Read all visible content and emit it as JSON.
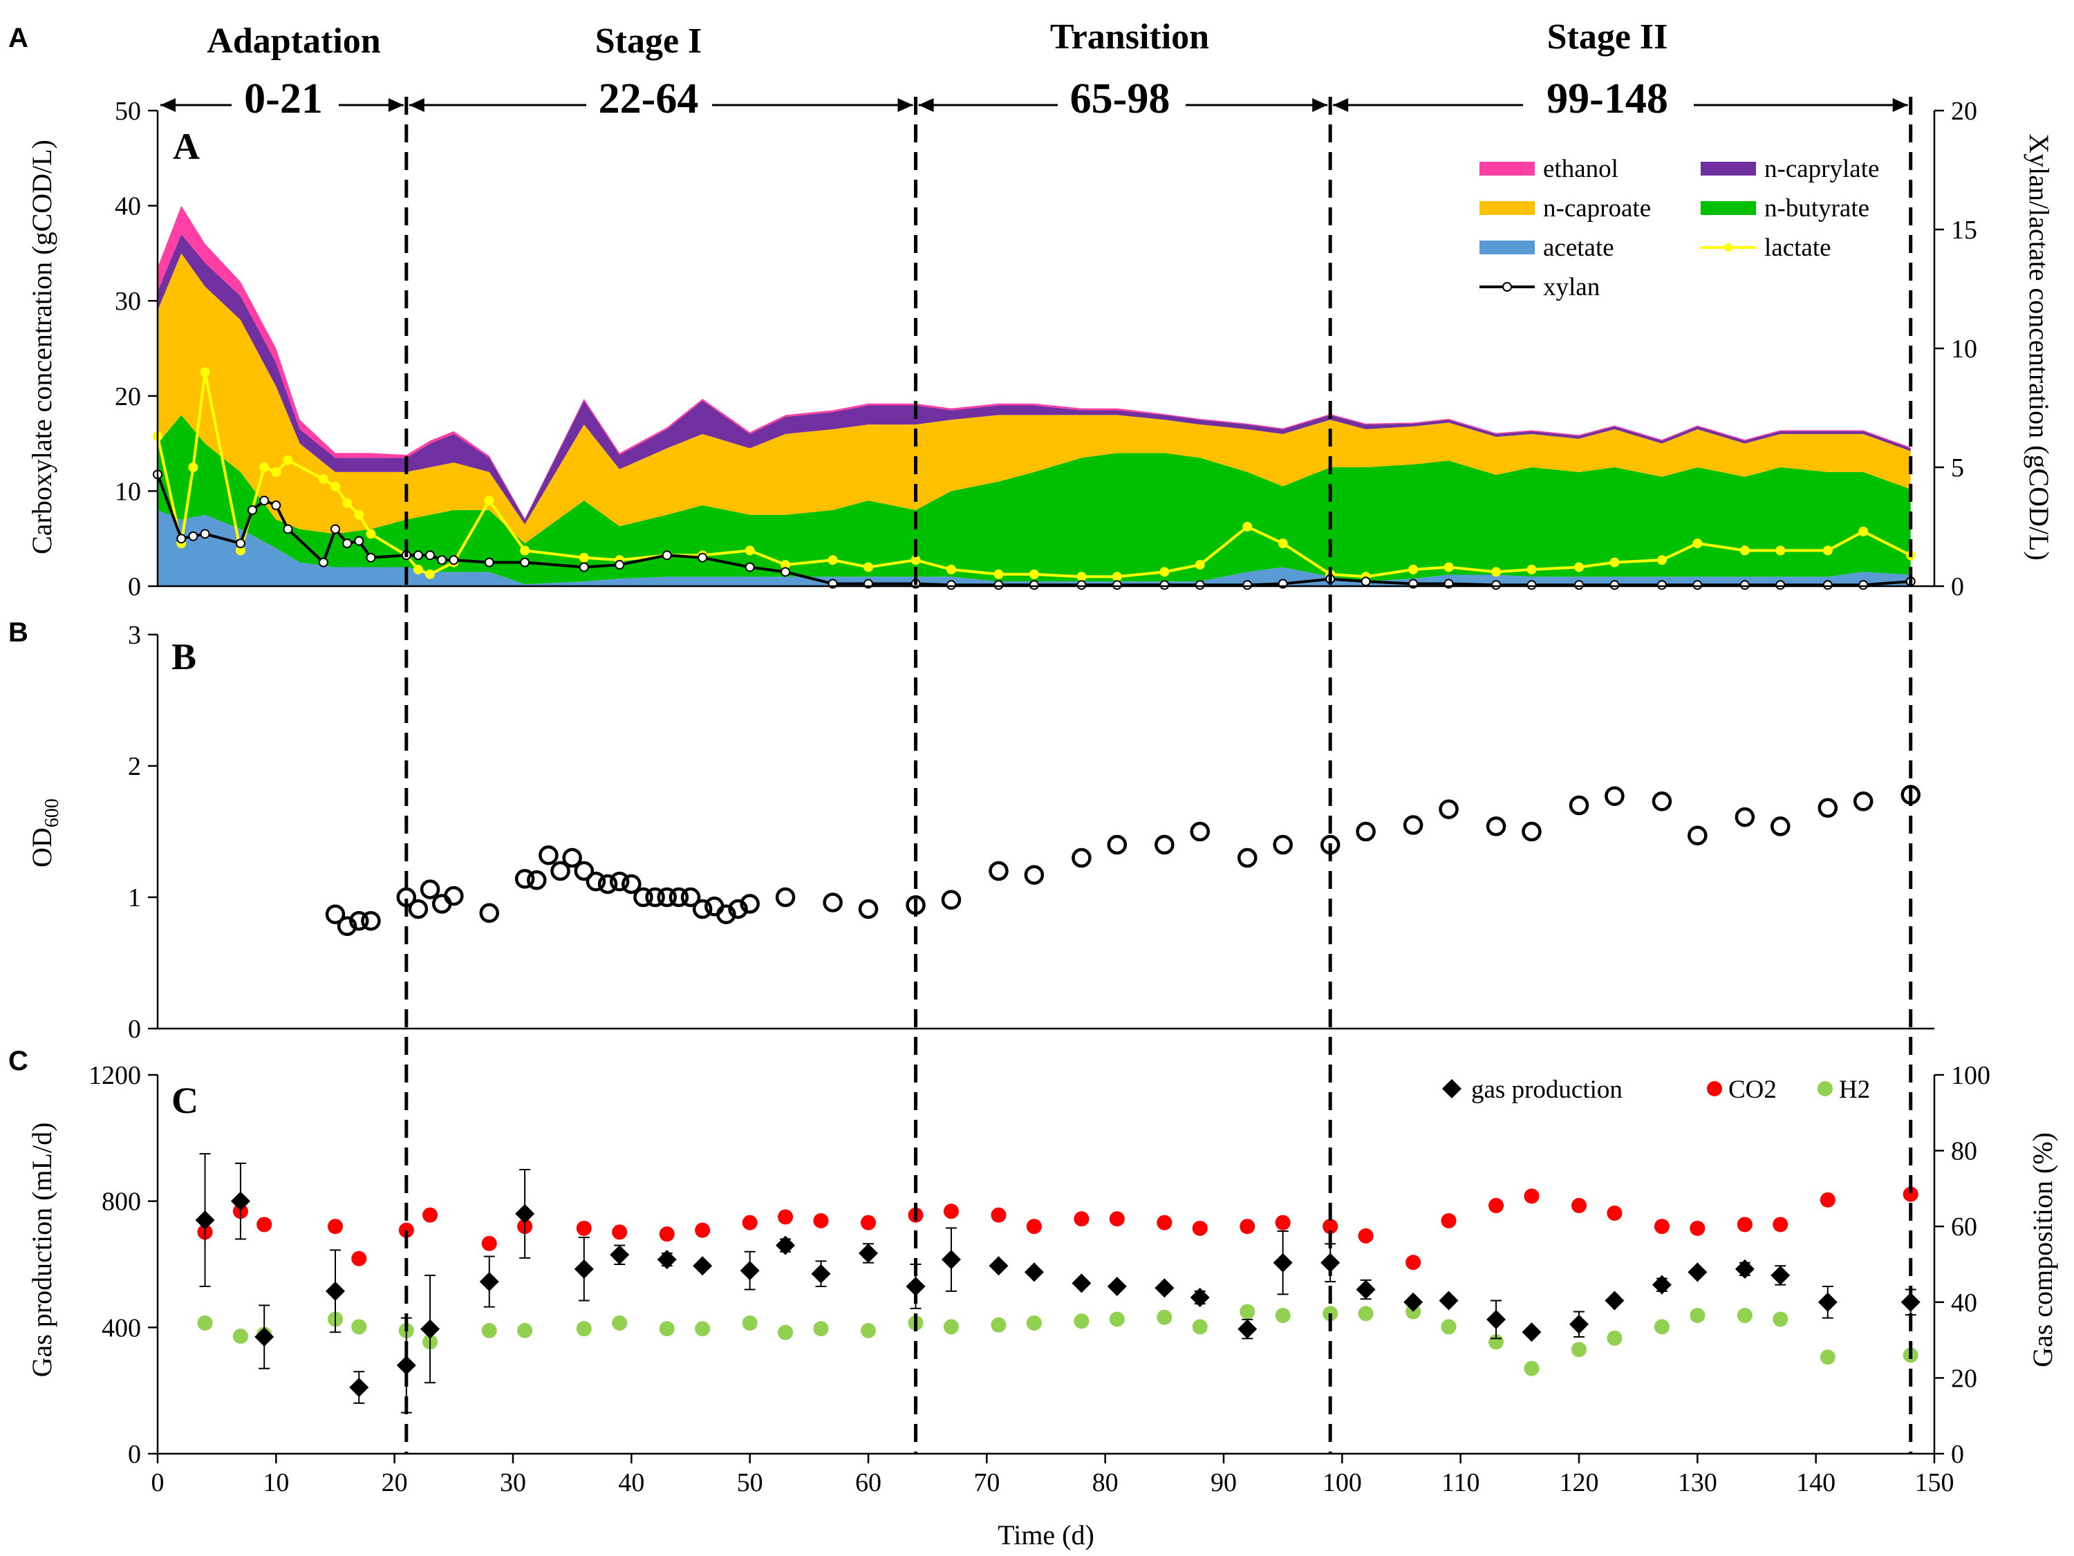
{
  "figure": {
    "outer_labels": [
      "A",
      "B",
      "C"
    ],
    "inner_labels": [
      "A",
      "B",
      "C"
    ],
    "stages": [
      {
        "name": "Adaptation",
        "range": "0-21"
      },
      {
        "name": "Stage I",
        "range": "22-64"
      },
      {
        "name": "Transition",
        "range": "65-98"
      },
      {
        "name": "Stage II",
        "range": "99-148"
      }
    ],
    "stage_boundaries": [
      0,
      21,
      64,
      99,
      148
    ],
    "colors": {
      "ethanol": "#ff3fa4",
      "n_caprylate": "#7030a0",
      "n_caproate": "#ffc000",
      "n_butyrate": "#00c000",
      "acetate": "#5b9bd5",
      "lactate": "#ffff00",
      "xylan": "#000000",
      "co2": "#ff0000",
      "h2": "#92d050"
    }
  },
  "chart_data": [
    {
      "type": "area",
      "panel": "A",
      "ylabel": "Carboxylate concentration (gCOD/L)",
      "y2label": "Xylan/lactate concentration (gCOD/L)",
      "ylim": [
        0,
        50
      ],
      "yticks": [
        0,
        10,
        20,
        30,
        40,
        50
      ],
      "y2lim": [
        0,
        20
      ],
      "y2ticks": [
        0,
        5,
        10,
        15,
        20
      ],
      "xlim": [
        0,
        150
      ],
      "legend": [
        "ethanol",
        "n-caprylate",
        "n-caproate",
        "n-butyrate",
        "acetate",
        "lactate",
        "xylan"
      ],
      "x": [
        0,
        2,
        4,
        7,
        10,
        12,
        15,
        18,
        21,
        23,
        25,
        28,
        31,
        36,
        39,
        43,
        46,
        50,
        53,
        57,
        60,
        64,
        67,
        71,
        74,
        78,
        81,
        85,
        88,
        92,
        95,
        99,
        102,
        106,
        109,
        113,
        116,
        120,
        123,
        127,
        130,
        134,
        137,
        141,
        144,
        148
      ],
      "stacked_series": [
        {
          "name": "acetate",
          "values": [
            8,
            7,
            7.5,
            6,
            4,
            2.5,
            2,
            2,
            2,
            1.5,
            1.5,
            1.5,
            0.2,
            0.5,
            0.8,
            1,
            1,
            1,
            1,
            1,
            1,
            1,
            1,
            0.5,
            0.5,
            0.5,
            0.5,
            0.5,
            0.5,
            1.5,
            2,
            1,
            0.5,
            0.8,
            1.2,
            1.2,
            1,
            1,
            1,
            1,
            1,
            1,
            1,
            1,
            1.5,
            1.2
          ]
        },
        {
          "name": "n-butyrate",
          "values": [
            7,
            11,
            7.5,
            6,
            3,
            3.5,
            3.5,
            4,
            5,
            6,
            6.5,
            6.5,
            4.3,
            8.5,
            5.5,
            6.5,
            7.5,
            6.5,
            6.5,
            7,
            8,
            7,
            9,
            10.5,
            11.5,
            13,
            13.5,
            13.5,
            13,
            10.5,
            8.5,
            11.5,
            12,
            12,
            12,
            10.5,
            11.5,
            11,
            11.5,
            10.5,
            11.5,
            10.5,
            11.5,
            11,
            10.5,
            9
          ]
        },
        {
          "name": "n-caproate",
          "values": [
            14,
            17,
            16.5,
            16,
            14,
            9,
            6.5,
            6,
            5,
            5,
            5,
            4,
            2,
            8,
            6,
            7,
            7.5,
            7,
            8.5,
            8.5,
            8,
            9,
            7.5,
            7,
            6,
            4.5,
            4,
            3.5,
            3.5,
            4.5,
            5.5,
            5,
            4,
            4,
            4,
            4,
            3.5,
            3.5,
            4,
            3.5,
            4,
            3.5,
            3.5,
            4,
            4,
            4
          ]
        },
        {
          "name": "n-caprylate",
          "values": [
            2,
            2,
            2.5,
            2.5,
            2.5,
            1.5,
            1.5,
            1.5,
            1.5,
            2.5,
            3,
            1.5,
            0.5,
            2.5,
            1.5,
            2,
            3.5,
            1.5,
            1.8,
            1.8,
            2,
            2,
            1,
            1,
            1,
            0.5,
            0.5,
            0.5,
            0.5,
            0.5,
            0.5,
            0.5,
            0.5,
            0.3,
            0.3,
            0.3,
            0.3,
            0.3,
            0.3,
            0.3,
            0.3,
            0.3,
            0.3,
            0.3,
            0.3,
            0.3
          ]
        },
        {
          "name": "ethanol",
          "values": [
            2.5,
            3,
            2,
            1.5,
            1.5,
            1,
            0.5,
            0.5,
            0.3,
            0.3,
            0.3,
            0.2,
            0.1,
            0.2,
            0.2,
            0.2,
            0.2,
            0.2,
            0.2,
            0.2,
            0.2,
            0.2,
            0.2,
            0.2,
            0.2,
            0.2,
            0.2,
            0.1,
            0.1,
            0.1,
            0.1,
            0.1,
            0.1,
            0.1,
            0.1,
            0.1,
            0.1,
            0.1,
            0.1,
            0.1,
            0.1,
            0.1,
            0.1,
            0.1,
            0.1,
            0.1
          ]
        }
      ],
      "lactate": {
        "x": [
          0,
          2,
          3,
          4,
          7,
          9,
          10,
          11,
          14,
          15,
          16,
          17,
          18,
          21,
          22,
          23,
          25,
          28,
          31,
          36,
          39,
          43,
          46,
          50,
          53,
          57,
          60,
          64,
          67,
          71,
          74,
          78,
          81,
          85,
          88,
          92,
          95,
          99,
          102,
          106,
          109,
          113,
          116,
          120,
          123,
          127,
          130,
          134,
          137,
          141,
          144,
          148
        ],
        "values": [
          6.3,
          1.8,
          5,
          9,
          1.5,
          5,
          4.8,
          5.3,
          4.5,
          4.2,
          3.5,
          3,
          2.2,
          1.3,
          0.7,
          0.5,
          1,
          3.6,
          1.5,
          1.2,
          1.1,
          1.3,
          1.3,
          1.5,
          0.9,
          1.1,
          0.8,
          1.1,
          0.7,
          0.5,
          0.5,
          0.4,
          0.4,
          0.6,
          0.9,
          2.5,
          1.8,
          0.5,
          0.4,
          0.7,
          0.8,
          0.6,
          0.7,
          0.8,
          1,
          1.1,
          1.8,
          1.5,
          1.5,
          1.5,
          2.3,
          1.3
        ]
      },
      "xylan": {
        "x": [
          0,
          2,
          3,
          4,
          7,
          8,
          9,
          10,
          11,
          14,
          15,
          16,
          17,
          18,
          21,
          22,
          23,
          24,
          25,
          28,
          31,
          36,
          39,
          43,
          46,
          50,
          53,
          57,
          60,
          64,
          67,
          71,
          74,
          78,
          81,
          85,
          88,
          92,
          95,
          99,
          102,
          106,
          109,
          113,
          116,
          120,
          123,
          127,
          130,
          134,
          137,
          141,
          144,
          148
        ],
        "values": [
          4.7,
          2,
          2.1,
          2.2,
          1.8,
          3.2,
          3.6,
          3.4,
          2.4,
          1,
          2.4,
          1.8,
          1.9,
          1.2,
          1.3,
          1.3,
          1.3,
          1.1,
          1.1,
          1,
          1,
          0.8,
          0.9,
          1.3,
          1.2,
          0.8,
          0.6,
          0.1,
          0.1,
          0.1,
          0.05,
          0.05,
          0.05,
          0.05,
          0.05,
          0.05,
          0.05,
          0.05,
          0.1,
          0.3,
          0.2,
          0.1,
          0.1,
          0.05,
          0.05,
          0.05,
          0.05,
          0.05,
          0.05,
          0.05,
          0.05,
          0.05,
          0.05,
          0.2
        ]
      }
    },
    {
      "type": "scatter",
      "panel": "B",
      "ylabel": "OD",
      "ylabel_subscript": "600",
      "ylim": [
        0,
        3
      ],
      "yticks": [
        0,
        1,
        2,
        3
      ],
      "xlim": [
        0,
        150
      ],
      "x": [
        15,
        16,
        17,
        18,
        21,
        22,
        23,
        24,
        25,
        28,
        31,
        32,
        33,
        34,
        35,
        36,
        37,
        38,
        39,
        40,
        41,
        42,
        43,
        44,
        45,
        46,
        47,
        48,
        49,
        50,
        53,
        57,
        60,
        64,
        67,
        71,
        74,
        78,
        81,
        85,
        88,
        92,
        95,
        99,
        102,
        106,
        109,
        113,
        116,
        120,
        123,
        127,
        130,
        134,
        137,
        141,
        144,
        148
      ],
      "values": [
        0.87,
        0.78,
        0.82,
        0.82,
        1.0,
        0.91,
        1.06,
        0.95,
        1.01,
        0.88,
        1.14,
        1.13,
        1.32,
        1.2,
        1.3,
        1.2,
        1.12,
        1.1,
        1.12,
        1.1,
        1.0,
        1.0,
        1.0,
        1.0,
        1.0,
        0.91,
        0.93,
        0.87,
        0.91,
        0.95,
        1.0,
        0.96,
        0.91,
        0.94,
        0.98,
        1.2,
        1.17,
        1.3,
        1.4,
        1.4,
        1.5,
        1.3,
        1.4,
        1.4,
        1.5,
        1.55,
        1.67,
        1.54,
        1.5,
        1.7,
        1.77,
        1.73,
        1.47,
        1.61,
        1.54,
        1.68,
        1.73,
        1.78
      ]
    },
    {
      "type": "scatter",
      "panel": "C",
      "ylabel": "Gas production (mL/d)",
      "y2label": "Gas composition (%)",
      "ylim": [
        0,
        1200
      ],
      "yticks": [
        0,
        400,
        800,
        1200
      ],
      "y2lim": [
        0,
        100
      ],
      "y2ticks": [
        0,
        20,
        40,
        60,
        80,
        100
      ],
      "xlim": [
        0,
        150
      ],
      "xticks": [
        0,
        10,
        20,
        30,
        40,
        50,
        60,
        70,
        80,
        90,
        100,
        110,
        120,
        130,
        140,
        150
      ],
      "xlabel": "Time (d)",
      "legend": [
        "gas production",
        "CO2",
        "H2"
      ],
      "gas_production": {
        "x": [
          4,
          7,
          9,
          15,
          17,
          21,
          23,
          28,
          31,
          36,
          39,
          43,
          46,
          50,
          53,
          56,
          60,
          64,
          67,
          71,
          74,
          78,
          81,
          85,
          88,
          92,
          95,
          99,
          102,
          106,
          109,
          113,
          116,
          120,
          123,
          127,
          130,
          134,
          137,
          141,
          148
        ],
        "values": [
          740,
          800,
          370,
          515,
          210,
          280,
          395,
          545,
          760,
          585,
          630,
          615,
          595,
          580,
          660,
          570,
          635,
          530,
          615,
          595,
          575,
          540,
          530,
          525,
          495,
          395,
          605,
          605,
          520,
          480,
          485,
          425,
          385,
          410,
          485,
          535,
          575,
          585,
          565,
          480,
          480
        ],
        "error": [
          210,
          120,
          100,
          130,
          50,
          150,
          170,
          80,
          140,
          100,
          30,
          20,
          10,
          60,
          20,
          40,
          30,
          70,
          100,
          10,
          10,
          10,
          10,
          10,
          20,
          30,
          100,
          60,
          30,
          10,
          10,
          60,
          10,
          40,
          10,
          20,
          10,
          20,
          30,
          50,
          40
        ]
      },
      "co2": {
        "x": [
          4,
          7,
          9,
          15,
          17,
          21,
          23,
          28,
          31,
          36,
          39,
          43,
          46,
          50,
          53,
          56,
          60,
          64,
          67,
          71,
          74,
          78,
          81,
          85,
          88,
          92,
          95,
          99,
          102,
          106,
          109,
          113,
          116,
          120,
          123,
          127,
          130,
          134,
          137,
          141,
          148
        ],
        "values": [
          58.5,
          64,
          60.5,
          60,
          51.5,
          59,
          63,
          55.5,
          60,
          59.5,
          58.5,
          58,
          59,
          61,
          62.5,
          61.5,
          61,
          63,
          64,
          63,
          60,
          62,
          62,
          61,
          59.5,
          60,
          61,
          60,
          57.5,
          50.5,
          61.5,
          65.5,
          68,
          65.5,
          63.5,
          60,
          59.5,
          60.5,
          60.5,
          67,
          68.5
        ]
      },
      "h2": {
        "x": [
          4,
          7,
          9,
          15,
          17,
          21,
          23,
          28,
          31,
          36,
          39,
          43,
          46,
          50,
          53,
          56,
          60,
          64,
          67,
          71,
          74,
          78,
          81,
          85,
          88,
          92,
          95,
          99,
          102,
          106,
          109,
          113,
          116,
          120,
          123,
          127,
          130,
          134,
          137,
          141,
          148
        ],
        "values": [
          34.5,
          31,
          31.5,
          35.5,
          33.5,
          32.5,
          29.5,
          32.5,
          32.5,
          33,
          34.5,
          33,
          33,
          34.5,
          32,
          33,
          32.5,
          34.5,
          33.5,
          34,
          34.5,
          35,
          35.5,
          36,
          33.5,
          37.5,
          36.5,
          37,
          37,
          37.5,
          33.5,
          29.5,
          22.5,
          27.5,
          30.5,
          33.5,
          36.5,
          36.5,
          35.5,
          25.5,
          26
        ]
      }
    }
  ]
}
